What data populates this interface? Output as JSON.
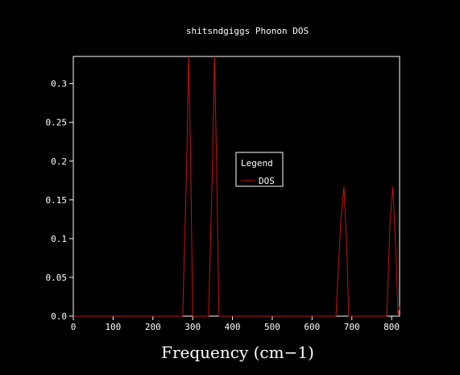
{
  "chart_data": {
    "type": "line",
    "title": "shitsndgiggs Phonon DOS",
    "xlabel": "Frequency (cm−1)",
    "ylabel": "",
    "xlim": [
      0,
      820
    ],
    "ylim": [
      0,
      0.335
    ],
    "xticks": [
      0,
      100,
      200,
      300,
      400,
      500,
      600,
      700,
      800
    ],
    "xtick_labels": [
      "0",
      "100",
      "200",
      "300",
      "400",
      "500",
      "600",
      "700",
      "800"
    ],
    "yticks": [
      0,
      0.05,
      0.1,
      0.15,
      0.2,
      0.25,
      0.3
    ],
    "ytick_labels": [
      "0.0",
      "0.05",
      "0.1",
      "0.15",
      "0.2",
      "0.25",
      "0.3"
    ],
    "grid": false,
    "legend": {
      "title": "Legend",
      "placement": "center"
    },
    "series": [
      {
        "name": "DOS",
        "color": "#cc1111",
        "x": [
          0,
          275,
          285,
          290,
          295,
          300,
          340,
          350,
          355,
          360,
          366,
          660,
          672,
          680,
          688,
          692,
          788,
          796,
          803,
          811,
          816,
          820
        ],
        "y": [
          0,
          0,
          0.2,
          0.335,
          0.2,
          0,
          0,
          0.2,
          0.335,
          0.2,
          0,
          0,
          0.12,
          0.167,
          0.08,
          0,
          0,
          0.12,
          0.167,
          0.08,
          0,
          0.012
        ]
      }
    ]
  }
}
